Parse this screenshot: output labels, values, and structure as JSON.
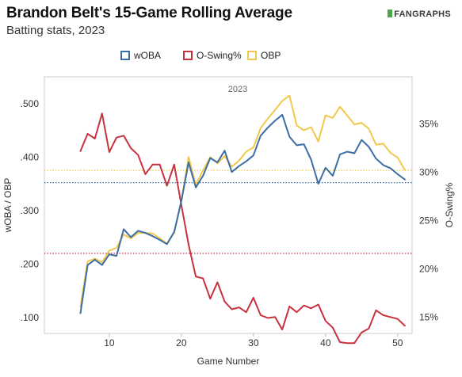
{
  "header": {
    "title": "Brandon Belt's 15-Game Rolling Average",
    "subtitle": "Batting stats, 2023",
    "logo_text": "FANGRAPHS"
  },
  "chart_data": {
    "type": "line",
    "title": "Brandon Belt's 15-Game Rolling Average",
    "subtitle": "Batting stats, 2023",
    "panel_label": "2023",
    "xlabel": "Game Number",
    "ylabel_left": "wOBA / OBP",
    "ylabel_right": "O-Swing%",
    "xlim": [
      1,
      52
    ],
    "ylim_left": [
      0.07,
      0.55
    ],
    "ylim_right": [
      13.3,
      39.9
    ],
    "x_ticks": [
      10,
      20,
      30,
      40,
      50
    ],
    "x_tick_labels": [
      "10",
      "20",
      "30",
      "40",
      "50"
    ],
    "y_left_ticks": [
      0.1,
      0.2,
      0.3,
      0.4,
      0.5
    ],
    "y_left_tick_labels": [
      ".100",
      ".200",
      ".300",
      ".400",
      ".500"
    ],
    "y_right_ticks": [
      15,
      20,
      25,
      30,
      35
    ],
    "y_right_tick_labels": [
      "15%",
      "20%",
      "25%",
      "30%",
      "35%"
    ],
    "legend_position": "top-center",
    "grid": false,
    "series": [
      {
        "name": "wOBA",
        "axis": "left",
        "color": "#3b6ea5",
        "x": [
          6,
          7,
          8,
          9,
          10,
          11,
          12,
          13,
          14,
          15,
          16,
          17,
          18,
          19,
          20,
          21,
          22,
          23,
          24,
          25,
          26,
          27,
          28,
          29,
          30,
          31,
          32,
          33,
          34,
          35,
          36,
          37,
          38,
          39,
          40,
          41,
          42,
          43,
          44,
          45,
          46,
          47,
          48,
          49,
          50,
          51
        ],
        "values": [
          0.108,
          0.198,
          0.208,
          0.198,
          0.218,
          0.215,
          0.265,
          0.25,
          0.262,
          0.258,
          0.252,
          0.245,
          0.237,
          0.26,
          0.318,
          0.39,
          0.343,
          0.365,
          0.398,
          0.39,
          0.412,
          0.372,
          0.383,
          0.392,
          0.403,
          0.44,
          0.455,
          0.468,
          0.479,
          0.438,
          0.422,
          0.424,
          0.395,
          0.35,
          0.38,
          0.365,
          0.405,
          0.41,
          0.407,
          0.432,
          0.419,
          0.397,
          0.385,
          0.379,
          0.368,
          0.358
        ]
      },
      {
        "name": "O-Swing%",
        "axis": "right",
        "color": "#c8313e",
        "x": [
          6,
          7,
          8,
          9,
          10,
          11,
          12,
          13,
          14,
          15,
          16,
          17,
          18,
          19,
          20,
          21,
          22,
          23,
          24,
          25,
          26,
          27,
          28,
          29,
          30,
          31,
          32,
          33,
          34,
          35,
          36,
          37,
          38,
          39,
          40,
          41,
          42,
          43,
          44,
          45,
          46,
          47,
          48,
          49,
          50,
          51
        ],
        "values": [
          32.2,
          34.0,
          33.5,
          36.1,
          32.1,
          33.6,
          33.8,
          32.5,
          31.8,
          29.8,
          30.8,
          30.8,
          28.6,
          30.8,
          26.6,
          22.5,
          19.2,
          19.0,
          16.9,
          18.6,
          16.6,
          15.8,
          16.0,
          15.5,
          17.0,
          15.2,
          14.9,
          15.0,
          13.7,
          16.1,
          15.5,
          16.2,
          15.9,
          16.3,
          14.6,
          13.9,
          12.4,
          12.3,
          12.3,
          13.4,
          13.8,
          15.7,
          15.2,
          15.0,
          14.8,
          14.1
        ]
      },
      {
        "name": "OBP",
        "axis": "left",
        "color": "#f1c84b",
        "x": [
          6,
          7,
          8,
          9,
          10,
          11,
          12,
          13,
          14,
          15,
          16,
          17,
          18,
          19,
          20,
          21,
          22,
          23,
          24,
          25,
          26,
          27,
          28,
          29,
          30,
          31,
          32,
          33,
          34,
          35,
          36,
          37,
          38,
          39,
          40,
          41,
          42,
          43,
          44,
          45,
          46,
          47,
          48,
          49,
          50,
          51
        ],
        "values": [
          0.12,
          0.205,
          0.21,
          0.203,
          0.225,
          0.23,
          0.255,
          0.248,
          0.258,
          0.258,
          0.257,
          0.248,
          0.238,
          0.258,
          0.318,
          0.4,
          0.348,
          0.375,
          0.4,
          0.388,
          0.402,
          0.382,
          0.393,
          0.41,
          0.418,
          0.454,
          0.472,
          0.488,
          0.505,
          0.515,
          0.459,
          0.45,
          0.456,
          0.429,
          0.478,
          0.473,
          0.494,
          0.478,
          0.461,
          0.464,
          0.453,
          0.423,
          0.425,
          0.408,
          0.399,
          0.376
        ]
      }
    ],
    "reference_lines": [
      {
        "name": "wOBA",
        "axis": "left",
        "value": 0.352,
        "color": "#3b6ea5",
        "style": "dotted"
      },
      {
        "name": "O-Swing%",
        "axis": "right",
        "value": 21.6,
        "color": "#c8313e",
        "style": "dotted"
      },
      {
        "name": "OBP",
        "axis": "left",
        "value": 0.375,
        "color": "#f1c84b",
        "style": "dotted"
      }
    ]
  }
}
